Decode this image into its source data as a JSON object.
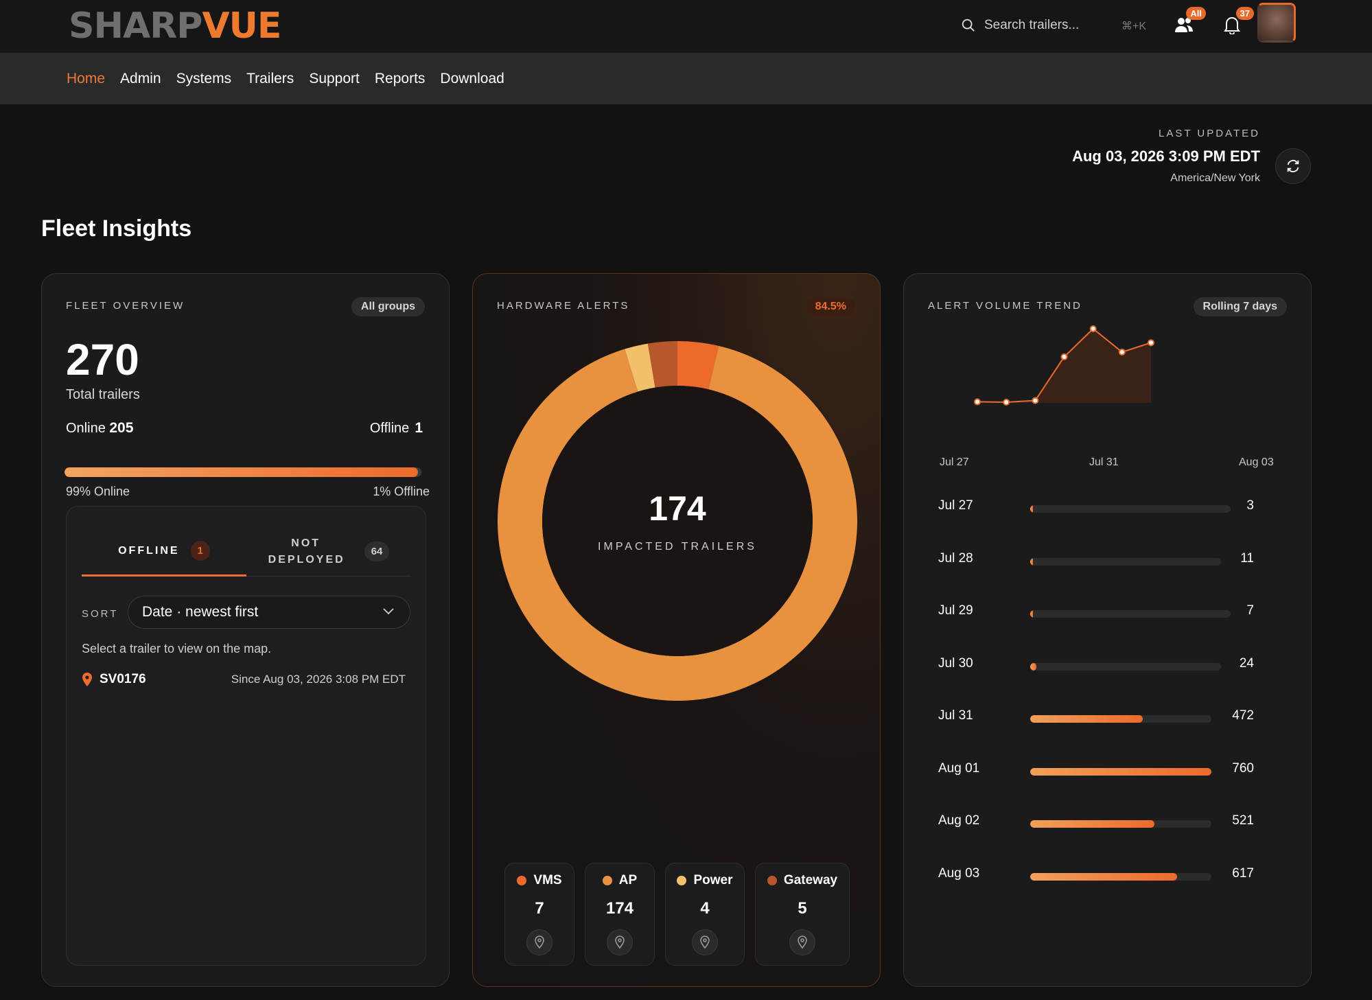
{
  "header": {
    "logo_part1": "SHARP",
    "logo_part2": "VUE",
    "search_placeholder": "Search trailers...",
    "search_shortcut": "⌘+K",
    "users_badge": "All",
    "notifications_badge": "37"
  },
  "nav": {
    "items": [
      {
        "label": "Home",
        "active": true
      },
      {
        "label": "Admin"
      },
      {
        "label": "Systems"
      },
      {
        "label": "Trailers"
      },
      {
        "label": "Support"
      },
      {
        "label": "Reports"
      },
      {
        "label": "Download"
      }
    ]
  },
  "last_updated": {
    "label": "LAST UPDATED",
    "timestamp": "Aug 03, 2026 3:09 PM EDT",
    "timezone": "America/New York"
  },
  "page_title": "Fleet Insights",
  "fleet_overview": {
    "heading": "FLEET OVERVIEW",
    "filter": "All groups",
    "total": "270",
    "total_label": "Total trailers",
    "online_label": "Online",
    "online_value": "205",
    "offline_label": "Offline",
    "offline_value": "1",
    "online_fraction": 0.99,
    "online_pct_label": "99% Online",
    "offline_pct_label": "1% Offline",
    "tabs": {
      "offline_label": "OFFLINE",
      "offline_count": "1",
      "not_deployed_label": "NOT DEPLOYED",
      "not_deployed_count": "64"
    },
    "sort_label": "SORT",
    "sort_value": "Date · newest first",
    "hint": "Select a trailer to view on the map.",
    "trailers": [
      {
        "id": "SV0176",
        "since": "Since Aug 03, 2026 3:08 PM EDT"
      }
    ]
  },
  "hardware_alerts": {
    "heading": "HARDWARE ALERTS",
    "pct": "84.5%",
    "impacted": "174",
    "impacted_label": "IMPACTED TRAILERS",
    "categories": [
      {
        "name": "VMS",
        "value": 7,
        "value_text": "7",
        "color": "#ec6a2c"
      },
      {
        "name": "AP",
        "value": 174,
        "value_text": "174",
        "color": "#e8923f"
      },
      {
        "name": "Power",
        "value": 4,
        "value_text": "4",
        "color": "#f2c06a"
      },
      {
        "name": "Gateway",
        "value": 5,
        "value_text": "5",
        "color": "#b8582a"
      }
    ]
  },
  "alert_trend": {
    "heading": "ALERT VOLUME TREND",
    "filter": "Rolling 7 days",
    "axis_start": "Jul 27",
    "axis_mid": "Jul 31",
    "axis_end": "Aug 03",
    "accent": "#ec6a2c"
  },
  "chart_data": {
    "type": "area",
    "x": [
      "Jul 27",
      "Jul 28",
      "Jul 29",
      "Jul 30",
      "Jul 31",
      "Aug 01",
      "Aug 02",
      "Aug 03"
    ],
    "series": [
      {
        "values": [
          3,
          11,
          7,
          24,
          472,
          760,
          521,
          617
        ]
      }
    ],
    "title": "",
    "xlabel": "",
    "ylabel": "",
    "grid": false,
    "max_value": 760
  }
}
